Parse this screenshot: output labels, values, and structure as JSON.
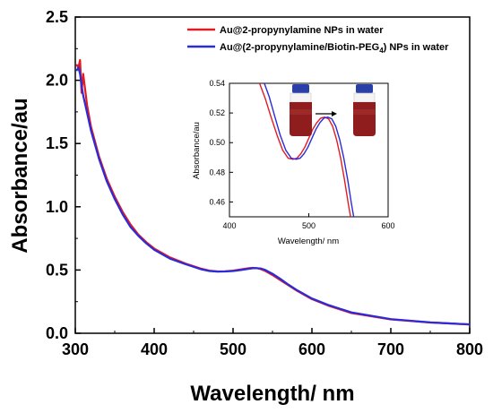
{
  "chart_data": {
    "type": "line",
    "xlabel": "Wavelength/ nm",
    "ylabel": "Absorbance/au",
    "xlim": [
      300,
      800
    ],
    "ylim": [
      0.0,
      2.5
    ],
    "x_ticks": [
      "300",
      "400",
      "500",
      "600",
      "700",
      "800"
    ],
    "y_ticks": [
      "0.0",
      "0.5",
      "1.0",
      "1.5",
      "2.0",
      "2.5"
    ],
    "grid": false,
    "legend_position": "top-right",
    "legend": [
      {
        "text": "Au@2-propynylamine NPs in water",
        "color": "#e01b23"
      },
      {
        "text": "Au@(2-propynylamine/Biotin-PEG",
        "sub": "4",
        "suffix": ") NPs in water",
        "color": "#2b2bd9"
      }
    ],
    "series": [
      {
        "name": "Au@2-propynylamine NPs in water",
        "color": "#e01b23",
        "x": [
          302,
          304,
          306,
          308,
          310,
          315,
          320,
          330,
          340,
          350,
          360,
          370,
          380,
          390,
          400,
          420,
          440,
          460,
          470,
          480,
          490,
          500,
          510,
          520,
          525,
          530,
          535,
          540,
          550,
          560,
          570,
          580,
          600,
          620,
          650,
          700,
          750,
          800
        ],
        "y": [
          2.12,
          2.1,
          2.16,
          1.9,
          2.05,
          1.8,
          1.63,
          1.4,
          1.22,
          1.08,
          0.96,
          0.86,
          0.78,
          0.72,
          0.67,
          0.6,
          0.55,
          0.51,
          0.495,
          0.489,
          0.49,
          0.495,
          0.505,
          0.515,
          0.517,
          0.515,
          0.508,
          0.495,
          0.46,
          0.42,
          0.38,
          0.34,
          0.27,
          0.22,
          0.16,
          0.11,
          0.085,
          0.07
        ]
      },
      {
        "name": "Au@(2-propynylamine/Biotin-PEG4) NPs in water",
        "color": "#2b2bd9",
        "x": [
          302,
          304,
          306,
          308,
          310,
          315,
          320,
          330,
          340,
          350,
          360,
          370,
          380,
          390,
          400,
          420,
          440,
          460,
          470,
          480,
          490,
          500,
          510,
          520,
          525,
          530,
          535,
          540,
          550,
          560,
          570,
          580,
          600,
          620,
          650,
          700,
          750,
          800
        ],
        "y": [
          2.08,
          2.1,
          2.05,
          1.96,
          1.88,
          1.74,
          1.6,
          1.38,
          1.2,
          1.06,
          0.94,
          0.84,
          0.77,
          0.71,
          0.66,
          0.59,
          0.545,
          0.505,
          0.492,
          0.488,
          0.489,
          0.492,
          0.5,
          0.51,
          0.514,
          0.515,
          0.512,
          0.503,
          0.47,
          0.43,
          0.385,
          0.345,
          0.275,
          0.225,
          0.165,
          0.112,
          0.086,
          0.07
        ]
      }
    ],
    "inset": {
      "xlabel": "Wavelength/ nm",
      "ylabel": "Absorbance/au",
      "xlim": [
        400,
        600
      ],
      "ylim": [
        0.45,
        0.54
      ],
      "x_ticks": [
        "400",
        "500",
        "600"
      ],
      "y_ticks": [
        "0.46",
        "0.48",
        "0.50",
        "0.52",
        "0.54"
      ],
      "series": [
        {
          "color": "#e01b23",
          "x": [
            438,
            445,
            452,
            460,
            467,
            474,
            480,
            485,
            490,
            495,
            500,
            505,
            510,
            515,
            520,
            525,
            530,
            535,
            540,
            545,
            550,
            553
          ],
          "y": [
            0.54,
            0.53,
            0.518,
            0.505,
            0.495,
            0.4895,
            0.4888,
            0.4895,
            0.4925,
            0.497,
            0.503,
            0.509,
            0.5135,
            0.5165,
            0.5172,
            0.516,
            0.511,
            0.502,
            0.49,
            0.475,
            0.458,
            0.449
          ]
        },
        {
          "color": "#2b2bd9",
          "x": [
            444,
            450,
            457,
            464,
            471,
            478,
            484,
            489,
            494,
            499,
            504,
            509,
            514,
            519,
            524,
            529,
            534,
            539,
            544,
            549,
            554,
            557
          ],
          "y": [
            0.54,
            0.531,
            0.518,
            0.505,
            0.495,
            0.4895,
            0.4888,
            0.4895,
            0.4925,
            0.497,
            0.503,
            0.509,
            0.5135,
            0.5165,
            0.5172,
            0.516,
            0.511,
            0.502,
            0.49,
            0.475,
            0.458,
            0.449
          ]
        }
      ]
    }
  }
}
